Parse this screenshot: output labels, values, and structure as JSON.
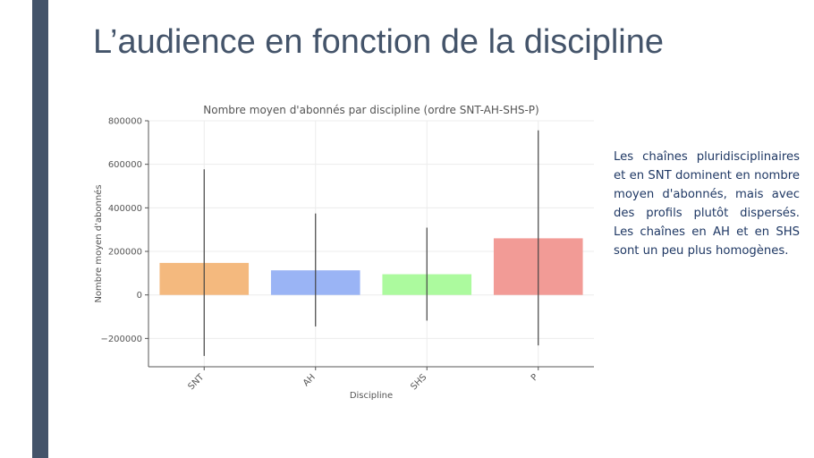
{
  "slide": {
    "title": "L’audience en fonction de la discipline",
    "body_text": "Les chaînes pluridisciplinaires et en SNT dominent en nombre moyen d'abonnés, mais avec des profils plutôt dispersés. Les chaînes en AH et en SHS sont un peu plus homogènes.",
    "accent_color": "#44546a",
    "text_color": "#1f3864"
  },
  "chart_data": {
    "type": "bar",
    "title": "Nombre moyen d'abonnés par discipline (ordre SNT-AH-SHS-P)",
    "xlabel": "Discipline",
    "ylabel": "Nombre moyen d'abonnés",
    "categories": [
      "SNT",
      "AH",
      "SHS",
      "P"
    ],
    "values": [
      147000,
      113000,
      95000,
      260000
    ],
    "error_low": [
      -280000,
      -145000,
      -118000,
      -232000
    ],
    "error_high": [
      577000,
      374000,
      309000,
      756000
    ],
    "colors": [
      "#f4b97e",
      "#9ab4f5",
      "#acfa9e",
      "#f29b96"
    ],
    "ylim": [
      -330000,
      800000
    ],
    "yticks": [
      -200000,
      0,
      200000,
      400000,
      600000,
      800000
    ],
    "ytick_labels": [
      "−200000",
      "0",
      "200000",
      "400000",
      "600000",
      "800000"
    ],
    "grid": true,
    "legend": "none"
  }
}
